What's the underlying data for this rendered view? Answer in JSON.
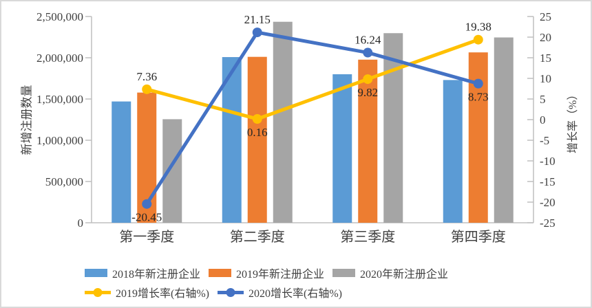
{
  "chart_data": {
    "type": "bar+line",
    "categories": [
      "第一季度",
      "第二季度",
      "第三季度",
      "第四季度"
    ],
    "bar_series": [
      {
        "id": "2018-registrations",
        "name": "2018年新注册企业",
        "color": "#5B9BD5",
        "values": [
          1470000,
          2008000,
          1800000,
          1730000
        ]
      },
      {
        "id": "2019-registrations",
        "name": "2019年新注册企业",
        "color": "#ED7D31",
        "values": [
          1578000,
          2011000,
          1977000,
          2065000
        ]
      },
      {
        "id": "2020-registrations",
        "name": "2020年新注册企业",
        "color": "#A5A5A5",
        "values": [
          1255000,
          2436000,
          2298000,
          2246000
        ]
      }
    ],
    "line_series": [
      {
        "id": "2019-growth",
        "name": "2019增长率(右轴%)",
        "color": "#FFC000",
        "values": [
          7.36,
          0.16,
          9.82,
          19.38
        ],
        "data_labels": [
          "7.36",
          "0.16",
          "9.82",
          "19.38"
        ],
        "label_pos": [
          "above",
          "below",
          "below",
          "above"
        ]
      },
      {
        "id": "2020-growth",
        "name": "2020增长率(右轴%)",
        "color": "#4472C4",
        "values": [
          -20.45,
          21.15,
          16.24,
          8.73
        ],
        "data_labels": [
          "-20.45",
          "21.15",
          "16.24",
          "8.73"
        ],
        "label_pos": [
          "below",
          "above",
          "above",
          "below"
        ]
      }
    ],
    "left_axis": {
      "title": "新增注册数量",
      "min": 0,
      "max": 2500000,
      "step": 500000,
      "tick_labels": [
        "2,500,000",
        "2,000,000",
        "1,500,000",
        "1,000,000",
        "500,000",
        "0"
      ]
    },
    "right_axis": {
      "title": "增长率（%）",
      "min": -25,
      "max": 25,
      "step": 5,
      "tick_labels": [
        "25",
        "20",
        "15",
        "10",
        "5",
        "0",
        "-5",
        "-10",
        "-15",
        "-20",
        "-25"
      ]
    },
    "legend_position": "bottom",
    "gridlines": false,
    "styles": {
      "axis_line_color": "#BFBFBF",
      "tick_text_color": "#404040",
      "data_label_color": "#262626",
      "background": "#FFFFFF"
    }
  }
}
